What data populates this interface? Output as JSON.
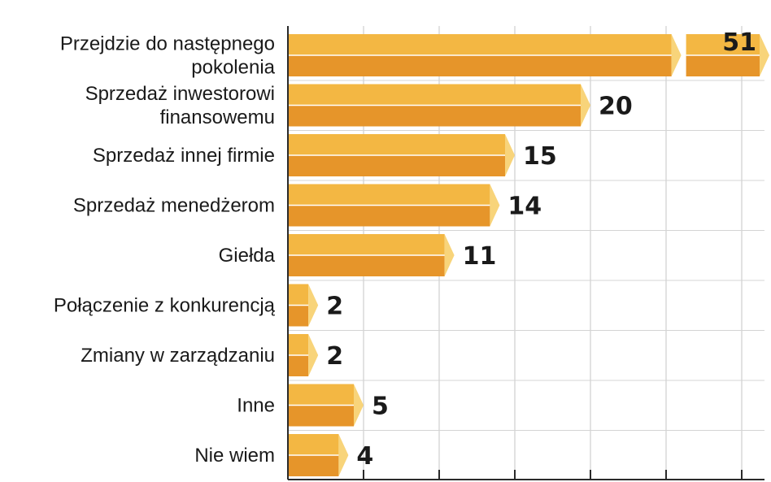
{
  "chart_data": {
    "type": "bar",
    "orientation": "horizontal",
    "categories": [
      [
        "Przejdzie do następnego",
        "pokolenia"
      ],
      [
        "Sprzedaż inwestorowi",
        "finansowemu"
      ],
      [
        "Sprzedaż innej firmie"
      ],
      [
        "Sprzedaż menedżerom"
      ],
      [
        "Giełda"
      ],
      [
        "Połączenie z konkurencją"
      ],
      [
        "Zmiany w zarządzaniu"
      ],
      [
        "Inne"
      ],
      [
        "Nie wiem"
      ]
    ],
    "values": [
      51,
      20,
      15,
      14,
      11,
      2,
      2,
      5,
      4
    ],
    "value_labels": [
      "51",
      "20",
      "15",
      "14",
      "11",
      "2",
      "2",
      "5",
      "4"
    ],
    "broken_bars": [
      0
    ],
    "xlim": [
      0,
      30
    ],
    "grid": "vertical",
    "title": "",
    "xlabel": "",
    "ylabel": "",
    "colors": {
      "bar_top": "#f3b743",
      "bar_bottom": "#e6952a",
      "bar_end": "#f8d47a",
      "grid": "#c4c4c4",
      "axis": "#2a2a2a"
    }
  }
}
